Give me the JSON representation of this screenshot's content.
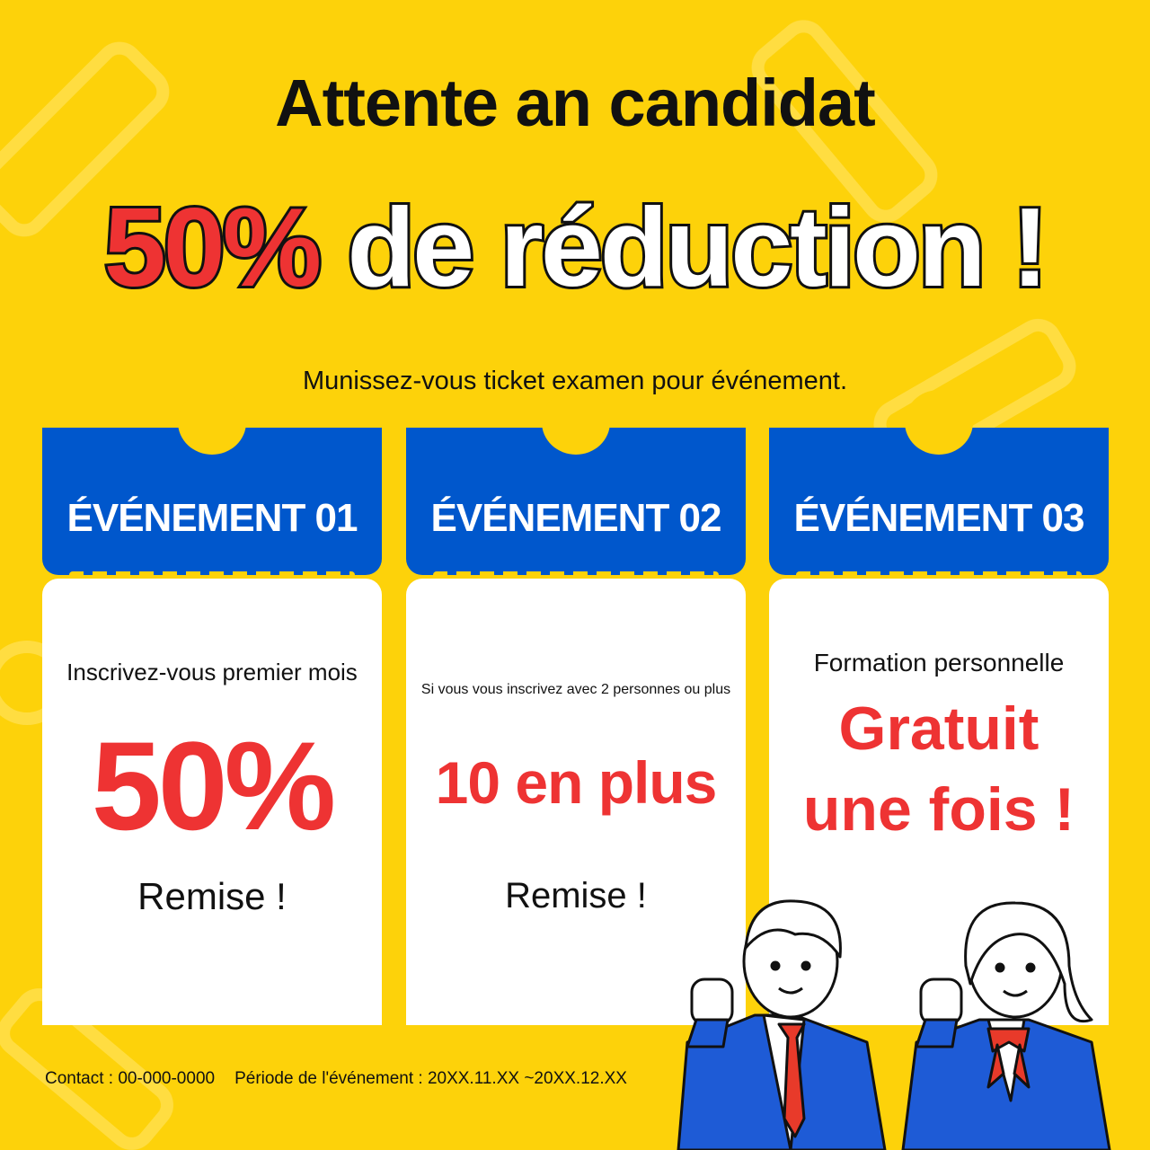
{
  "title": "Attente an candidat",
  "headline": {
    "percent": "50%",
    "rest": "de réduction !"
  },
  "subtitle": "Munissez-vous ticket examen pour événement.",
  "colors": {
    "background": "#FDD20A",
    "ticket_blue": "#0057CC",
    "accent_red": "#EE3333"
  },
  "tickets": [
    {
      "label": "ÉVÉNEMENT 01",
      "line1": "Inscrivez-vous premier mois",
      "big": "50%",
      "line3": "Remise !"
    },
    {
      "label": "ÉVÉNEMENT 02",
      "line1": "Si vous vous inscrivez avec 2 personnes ou plus",
      "big": "10 en plus",
      "line3": "Remise !"
    },
    {
      "label": "ÉVÉNEMENT 03",
      "line1": "Formation personnelle",
      "big1": "Gratuit",
      "big2": "une fois !"
    }
  ],
  "footer": {
    "contact": "Contact : 00-000-0000",
    "period": "Période de l'événement : 20XX.11.XX ~20XX.12.XX"
  }
}
